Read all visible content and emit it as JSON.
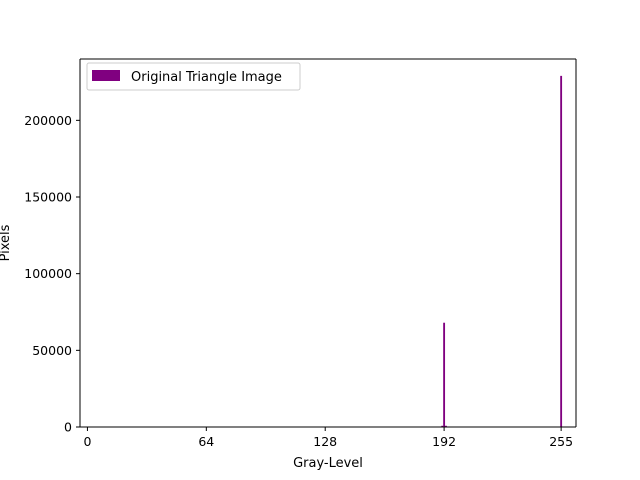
{
  "chart_data": {
    "type": "bar",
    "title": "",
    "xlabel": "Gray-Level",
    "ylabel": "Pixels",
    "xlim": [
      -4,
      263
    ],
    "ylim": [
      0,
      240000
    ],
    "xticks": [
      0,
      64,
      128,
      192,
      255
    ],
    "xtick_labels": [
      "0",
      "64",
      "128",
      "192",
      "255"
    ],
    "yticks": [
      0,
      50000,
      100000,
      150000,
      200000
    ],
    "ytick_labels": [
      "0",
      "50000",
      "100000",
      "150000",
      "200000"
    ],
    "grid": false,
    "legend": {
      "position": "top-left"
    },
    "series": [
      {
        "name": "Original Triangle Image",
        "color": "#800080",
        "bins": [
          0,
          191,
          192,
          193,
          254,
          255
        ],
        "values": [
          0,
          800,
          68000,
          800,
          300,
          229000
        ]
      }
    ]
  }
}
